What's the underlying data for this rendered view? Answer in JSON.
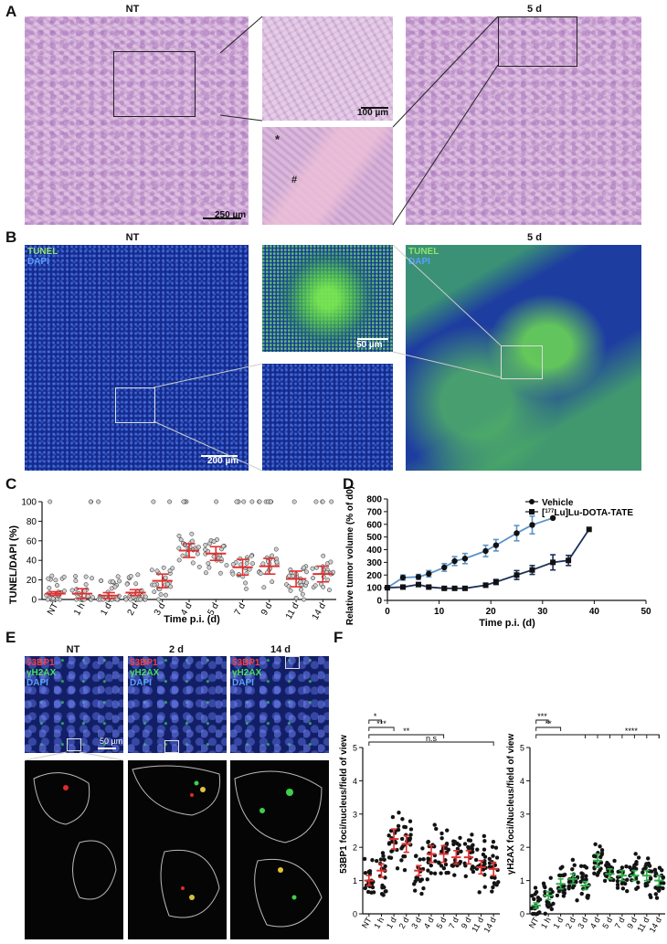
{
  "panels": {
    "A": {
      "label": "A",
      "titles": {
        "nt": "NT",
        "d5": "5 d"
      },
      "scalebars": {
        "main": "250 µm",
        "zoom": "100 µm"
      },
      "marks": {
        "asterisk": "*",
        "hash": "#"
      }
    },
    "B": {
      "label": "B",
      "titles": {
        "nt": "NT",
        "d5": "5 d"
      },
      "legend_tunel": "TUNEL",
      "legend_dapi": "DAPI",
      "scalebars": {
        "main": "200 µm",
        "zoom": "50 µm"
      }
    },
    "C": {
      "label": "C"
    },
    "D": {
      "label": "D"
    },
    "E": {
      "label": "E",
      "titles": [
        "NT",
        "2 d",
        "14 d"
      ],
      "legend": [
        "53BP1",
        "γH2AX",
        "DAPI"
      ],
      "scalebar": "50 µm"
    },
    "F": {
      "label": "F"
    }
  },
  "chart_data": [
    {
      "id": "C",
      "type": "scatter",
      "ylabel": "TUNEL/DAPI (%)",
      "xlabel": "Time p.i. (d)",
      "categories": [
        "NT",
        "1 h",
        "1 d",
        "2 d",
        "3 d",
        "4 d",
        "5 d",
        "7 d",
        "9 d",
        "11 d",
        "14 d"
      ],
      "ylim": [
        0,
        100
      ],
      "yticks": [
        0,
        20,
        40,
        60,
        80,
        100
      ],
      "mean": [
        6,
        6,
        4,
        7,
        19,
        50,
        47,
        33,
        34,
        21,
        26
      ],
      "sem": [
        2,
        5,
        3,
        3,
        7,
        7,
        7,
        8,
        8,
        8,
        8
      ],
      "mean_color": "#e03030"
    },
    {
      "id": "D",
      "type": "line",
      "ylabel": "Relative tumor volume (% of d0)",
      "xlabel": "Time p.i. (d)",
      "xlim": [
        0,
        50
      ],
      "ylim": [
        0,
        800
      ],
      "xticks": [
        0,
        10,
        20,
        30,
        40,
        50
      ],
      "yticks": [
        0,
        100,
        200,
        300,
        400,
        500,
        600,
        700,
        800
      ],
      "series": [
        {
          "name": "Vehicle",
          "color": "#5b93c9",
          "x": [
            0,
            3,
            6,
            8,
            11,
            13,
            15,
            19,
            21,
            25,
            28,
            32
          ],
          "y": [
            100,
            180,
            185,
            210,
            260,
            310,
            330,
            390,
            435,
            530,
            595,
            650
          ],
          "err": [
            0,
            20,
            20,
            25,
            30,
            35,
            40,
            45,
            45,
            60,
            70,
            0
          ]
        },
        {
          "name": "[177Lu]Lu-DOTA-TATE",
          "color": "#1d2f5a",
          "x": [
            0,
            3,
            6,
            8,
            11,
            13,
            15,
            19,
            21,
            25,
            28,
            32,
            35,
            39
          ],
          "y": [
            100,
            105,
            125,
            105,
            95,
            95,
            95,
            120,
            145,
            200,
            240,
            300,
            315,
            560
          ],
          "err": [
            0,
            10,
            15,
            12,
            10,
            10,
            10,
            15,
            20,
            35,
            35,
            60,
            40,
            0
          ]
        }
      ]
    },
    {
      "id": "F1",
      "type": "scatter",
      "ylabel": "53BP1 foci/nucleus/field of view",
      "categories": [
        "NT",
        "1 h",
        "1 d",
        "2 d",
        "3 d",
        "4 d",
        "5 d",
        "7 d",
        "9 d",
        "11 d",
        "14 d"
      ],
      "ylim": [
        0,
        5
      ],
      "yticks": [
        0,
        1,
        2,
        3,
        4,
        5
      ],
      "mean": [
        1.0,
        1.3,
        2.25,
        2.1,
        1.3,
        1.8,
        1.8,
        1.7,
        1.7,
        1.4,
        1.35
      ],
      "sem": [
        0.15,
        0.2,
        0.3,
        0.25,
        0.15,
        0.25,
        0.25,
        0.2,
        0.2,
        0.2,
        0.2
      ],
      "mean_color": "#e03030",
      "significance": [
        "*",
        "***",
        "**",
        "n.s"
      ]
    },
    {
      "id": "F2",
      "type": "scatter",
      "ylabel": "γH2AX foci/Nucleus/field of view",
      "categories": [
        "NT",
        "1 h",
        "1 d",
        "2 d",
        "3 d",
        "4 d",
        "5 d",
        "7 d",
        "9 d",
        "11 d",
        "14 d"
      ],
      "ylim": [
        0,
        5
      ],
      "yticks": [
        0,
        1,
        2,
        3,
        4,
        5
      ],
      "mean": [
        0.25,
        0.55,
        0.9,
        1.05,
        0.85,
        1.6,
        1.2,
        1.15,
        1.15,
        1.15,
        1.0
      ],
      "sem": [
        0.08,
        0.12,
        0.15,
        0.15,
        0.12,
        0.2,
        0.15,
        0.15,
        0.15,
        0.15,
        0.15
      ],
      "mean_color": "#2fae4a",
      "significance": [
        "***",
        "**",
        "****"
      ]
    }
  ]
}
